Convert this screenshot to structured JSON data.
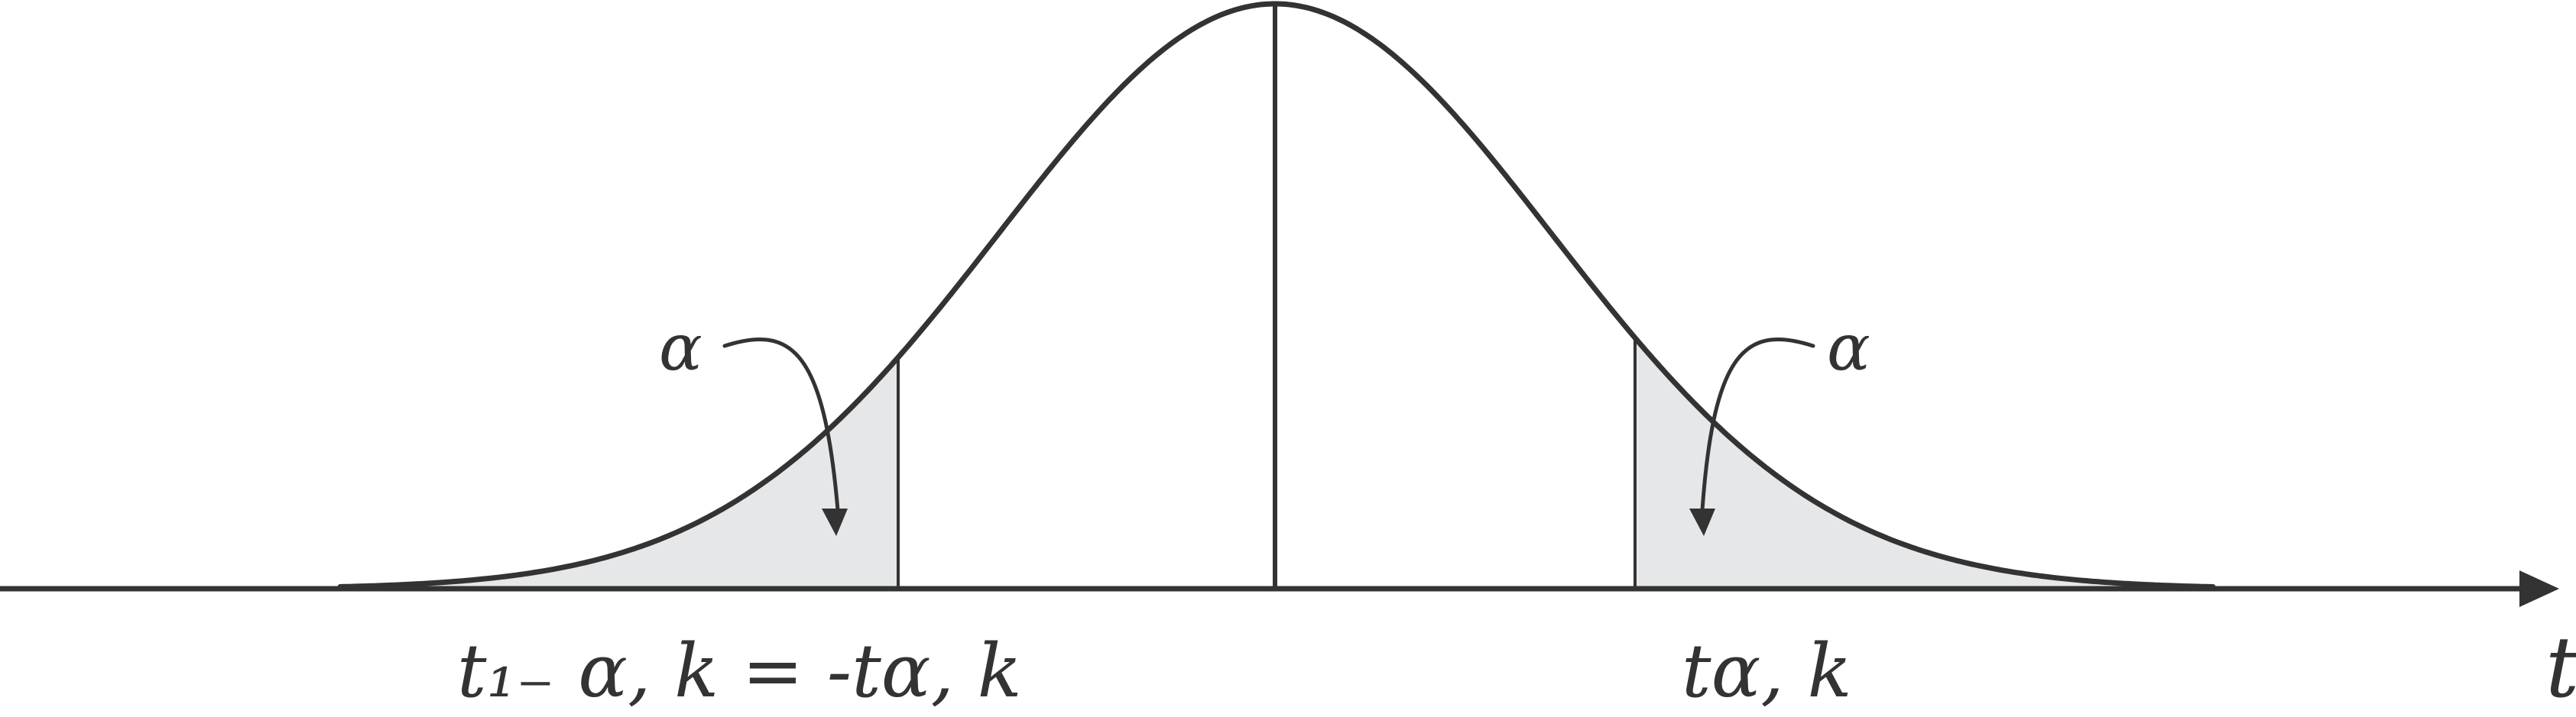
{
  "diagram": {
    "labels": {
      "left_tail_alpha": "α",
      "right_tail_alpha": "α",
      "left_critical_value": "t₁₋ α, k = -tα, k",
      "right_critical_value": "tα, k",
      "axis_variable": "t"
    },
    "colors": {
      "ink": "#333333",
      "tail_shading": "#e6e7e9",
      "background": "#ffffff"
    }
  }
}
